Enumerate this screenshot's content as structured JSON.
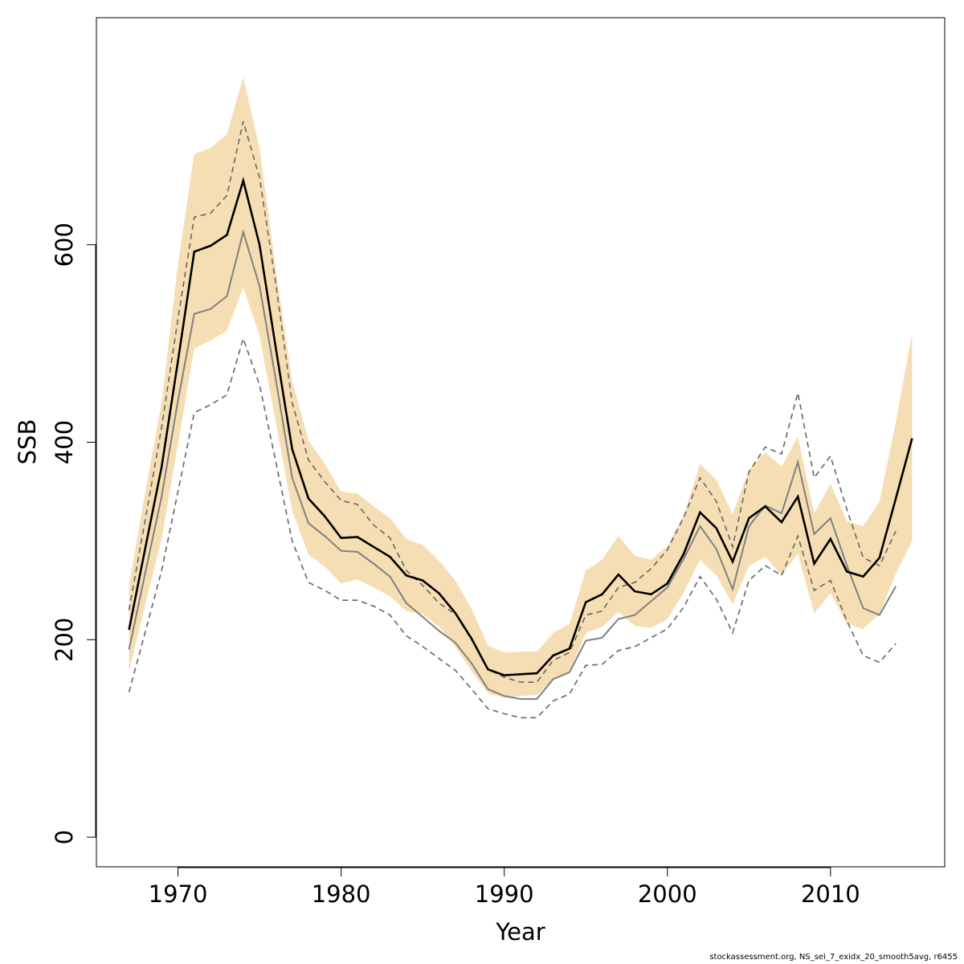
{
  "chart_data": {
    "type": "line",
    "xlabel": "Year",
    "ylabel": "SSB",
    "xlim": [
      1965,
      2017
    ],
    "ylim": [
      -30,
      830
    ],
    "x_ticks": [
      1970,
      1980,
      1990,
      2000,
      2010
    ],
    "y_ticks": [
      0,
      200,
      400,
      600
    ],
    "grid": false,
    "colors": {
      "band": "#f5deb3",
      "main_line": "#000000",
      "retro_line": "#808080",
      "retro_dashed": "#666666"
    },
    "years": [
      1967,
      1968,
      1969,
      1970,
      1971,
      1972,
      1973,
      1974,
      1975,
      1976,
      1977,
      1978,
      1979,
      1980,
      1981,
      1982,
      1983,
      1984,
      1985,
      1986,
      1987,
      1988,
      1989,
      1990,
      1991,
      1992,
      1993,
      1994,
      1995,
      1996,
      1997,
      1998,
      1999,
      2000,
      2001,
      2002,
      2003,
      2004,
      2005,
      2006,
      2007,
      2008,
      2009,
      2010,
      2011,
      2012,
      2013,
      2014,
      2015
    ],
    "ssb": [
      210,
      293,
      375,
      482,
      593,
      599,
      610,
      665,
      600,
      495,
      393,
      343,
      325,
      303,
      304,
      294,
      284,
      265,
      260,
      247,
      227,
      201,
      170,
      164,
      165,
      166,
      184,
      191,
      238,
      246,
      266,
      249,
      246,
      257,
      287,
      329,
      313,
      279,
      323,
      335,
      319,
      345,
      277,
      302,
      269,
      264,
      283,
      343,
      404
    ],
    "ci_low": [
      168,
      236,
      302,
      398,
      495,
      503,
      513,
      557,
      508,
      420,
      331,
      286,
      274,
      257,
      261,
      253,
      244,
      229,
      226,
      213,
      193,
      168,
      146,
      141,
      143,
      144,
      160,
      167,
      207,
      213,
      228,
      214,
      212,
      221,
      248,
      281,
      265,
      236,
      275,
      284,
      265,
      287,
      227,
      247,
      216,
      211,
      226,
      267,
      300
    ],
    "ci_high": [
      255,
      350,
      440,
      580,
      692,
      698,
      712,
      770,
      698,
      575,
      462,
      402,
      378,
      350,
      348,
      335,
      323,
      302,
      296,
      280,
      260,
      231,
      194,
      187,
      188,
      188,
      207,
      216,
      270,
      281,
      305,
      285,
      281,
      295,
      326,
      378,
      362,
      327,
      372,
      390,
      375,
      406,
      328,
      358,
      320,
      315,
      340,
      420,
      510
    ],
    "retro_mean": [
      190,
      268,
      345,
      442,
      530,
      535,
      548,
      613,
      558,
      463,
      364,
      318,
      305,
      290,
      289,
      277,
      264,
      237,
      223,
      209,
      197,
      176,
      150,
      143,
      140,
      140,
      160,
      167,
      199,
      202,
      221,
      225,
      239,
      253,
      282,
      315,
      292,
      251,
      315,
      336,
      328,
      380,
      307,
      323,
      275,
      232,
      225,
      254
    ],
    "retro_low": [
      147,
      208,
      270,
      350,
      430,
      438,
      448,
      505,
      458,
      380,
      300,
      258,
      250,
      240,
      240,
      234,
      225,
      204,
      193,
      181,
      169,
      150,
      130,
      125,
      121,
      121,
      138,
      145,
      174,
      175,
      189,
      193,
      202,
      211,
      233,
      264,
      241,
      207,
      260,
      275,
      265,
      305,
      250,
      260,
      219,
      184,
      177,
      196
    ],
    "retro_high": [
      230,
      322,
      415,
      525,
      628,
      632,
      650,
      725,
      668,
      560,
      440,
      382,
      360,
      341,
      337,
      316,
      303,
      270,
      255,
      237,
      226,
      200,
      170,
      162,
      157,
      157,
      179,
      187,
      225,
      229,
      253,
      258,
      272,
      291,
      324,
      364,
      340,
      294,
      370,
      395,
      388,
      450,
      364,
      386,
      332,
      283,
      275,
      310
    ]
  },
  "footer": "stockassessment.org, NS_sei_7_exidx_20_smooth5avg, r6455"
}
